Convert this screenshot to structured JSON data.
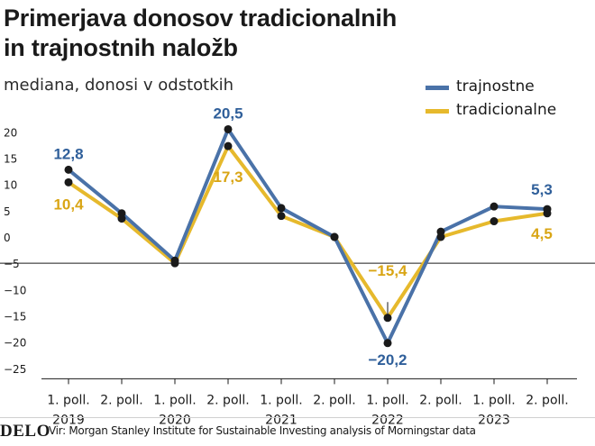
{
  "header": {
    "title_line1": "Primerjava donosov tradicionalnih",
    "title_line2": "in trajnostnih naložb",
    "subtitle": "mediana, donosi v odstotkih"
  },
  "colors": {
    "trajnostne": "#4a72a8",
    "tradicionalne": "#e6b92c",
    "label_blue": "#2f5f9a",
    "label_yellow": "#d9a514"
  },
  "legend": [
    {
      "label": "trajnostne",
      "color": "#4a72a8"
    },
    {
      "label": "tradicionalne",
      "color": "#e6b92c"
    }
  ],
  "chart_data": {
    "type": "line",
    "title": "Primerjava donosov tradicionalnih in trajnostnih naložb",
    "subtitle": "mediana, donosi v odstotkih",
    "categories": [
      "1. poll.",
      "2. poll.",
      "1. poll.",
      "2. poll.",
      "1. poll.",
      "2. poll.",
      "1. poll.",
      "2. poll.",
      "1. poll.",
      "2. poll."
    ],
    "years": [
      "2019",
      "2020",
      "2021",
      "2022",
      "2023"
    ],
    "series": [
      {
        "name": "trajnostne",
        "values": [
          12.8,
          4.5,
          -4.5,
          20.5,
          5.5,
          0.0,
          -20.2,
          1.0,
          5.8,
          5.3
        ]
      },
      {
        "name": "tradicionalne",
        "values": [
          10.4,
          3.5,
          -5.0,
          17.3,
          4.0,
          0.0,
          -15.4,
          0.0,
          3.0,
          4.5
        ]
      }
    ],
    "data_labels": [
      {
        "series": 0,
        "index": 0,
        "text": "12,8"
      },
      {
        "series": 1,
        "index": 0,
        "text": "10,4"
      },
      {
        "series": 0,
        "index": 3,
        "text": "20,5"
      },
      {
        "series": 1,
        "index": 3,
        "text": "17,3"
      },
      {
        "series": 1,
        "index": 6,
        "text": "−15,4"
      },
      {
        "series": 0,
        "index": 6,
        "text": "−20,2"
      },
      {
        "series": 0,
        "index": 9,
        "text": "5,3"
      },
      {
        "series": 1,
        "index": 9,
        "text": "4,5"
      }
    ],
    "yticks": [
      20,
      15,
      10,
      5,
      0,
      -5,
      -10,
      -15,
      -20,
      -25
    ],
    "ytick_labels": [
      "20",
      "15",
      "10",
      "5",
      "0",
      "−5",
      "−10",
      "−15",
      "−20",
      "−25"
    ],
    "ylim": [
      -27,
      22
    ],
    "grid": false,
    "legend_position": "top-right"
  },
  "footer": {
    "brand": "DELO",
    "source": "Vir: Morgan Stanley Institute for Sustainable Investing analysis of Morningstar data"
  }
}
